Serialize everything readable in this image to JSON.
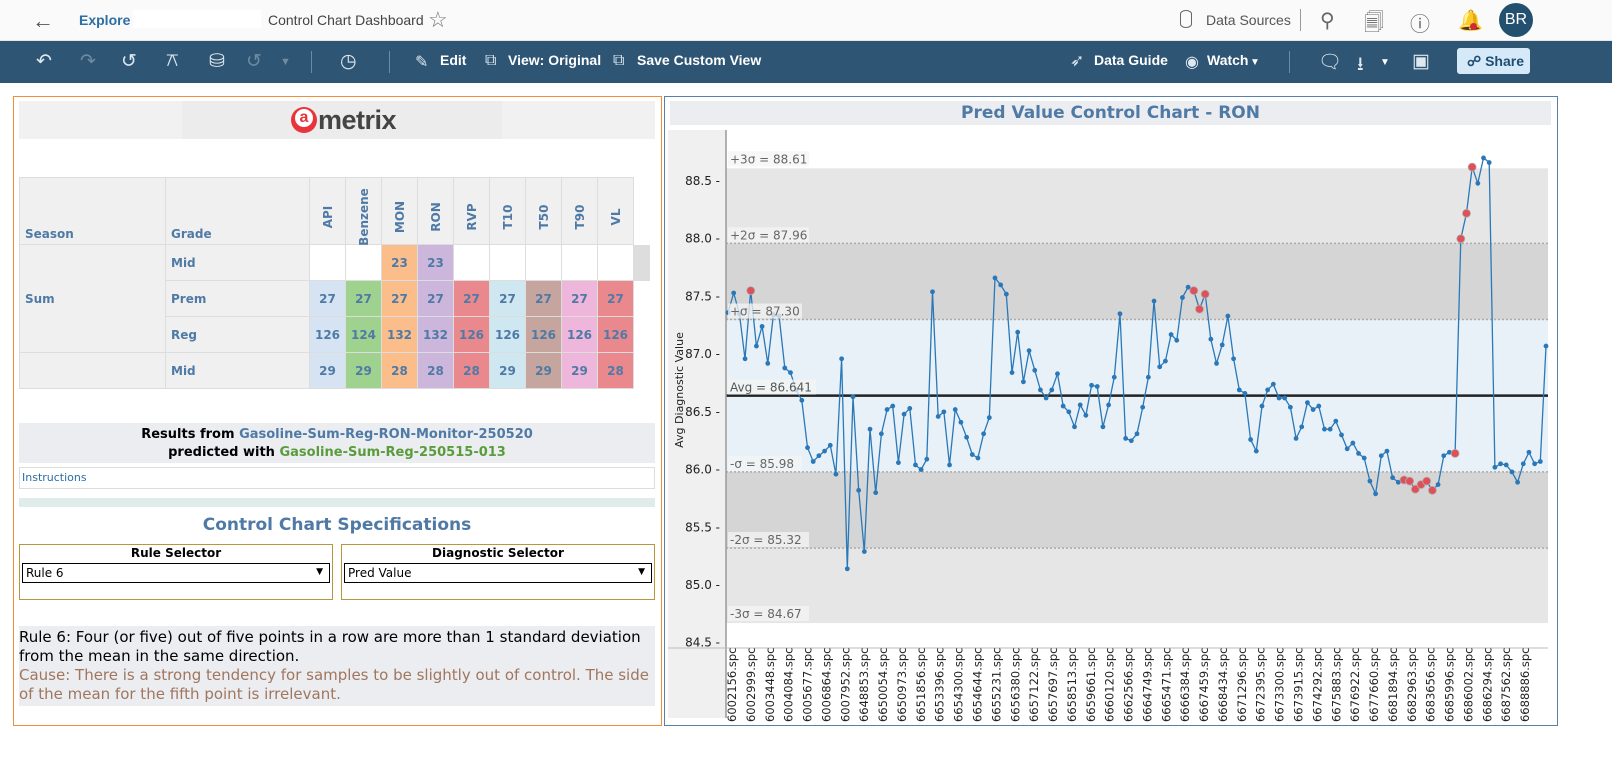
{
  "topbar": {
    "back_icon": "arrow-left-icon",
    "explore_label": "Explore",
    "dashboard_title": "Control Chart Dashboard",
    "favorite_icon": "star-icon",
    "data_sources_label": "Data Sources",
    "avatar_initials": "BR"
  },
  "toolbar": {
    "edit_label": "Edit",
    "view_label": "View: Original",
    "save_custom_view_label": "Save Custom View",
    "data_guide_label": "Data Guide",
    "watch_label": "Watch",
    "share_label": "Share"
  },
  "logo": {
    "text": "metrix",
    "mark": "a"
  },
  "counts_table": {
    "header_season": "Season",
    "header_grade": "Grade",
    "columns": [
      "API",
      "Benzene",
      "MON",
      "RON",
      "RVP",
      "T10",
      "T50",
      "T90",
      "VL"
    ],
    "column_colors": [
      "#d6e3f2",
      "#9fd28f",
      "#fbbe8b",
      "#cdb6dc",
      "#e9898d",
      "#cfe7f0",
      "#c6a59e",
      "#efb6dc",
      "#e9898d"
    ],
    "rows": [
      {
        "season": "Sum",
        "grade": "Mid",
        "values": [
          "",
          "",
          "23",
          "23",
          "",
          "",
          "",
          "",
          ""
        ]
      },
      {
        "season": "",
        "grade": "Prem",
        "values": [
          "27",
          "27",
          "27",
          "27",
          "27",
          "27",
          "27",
          "27",
          "27"
        ]
      },
      {
        "season": "",
        "grade": "Reg",
        "values": [
          "126",
          "124",
          "132",
          "132",
          "126",
          "126",
          "126",
          "126",
          "126"
        ]
      },
      {
        "season": "",
        "grade": "Mid",
        "values": [
          "29",
          "29",
          "28",
          "28",
          "28",
          "29",
          "29",
          "29",
          "28"
        ]
      }
    ]
  },
  "results": {
    "line1_prefix": "Results from",
    "monitor_name": "Gasoline-Sum-Reg-RON-Monitor-250520",
    "line2_prefix": "predicted with",
    "model_name": "Gasoline-Sum-Reg-250515-013"
  },
  "instructions_label": "Instructions",
  "specs": {
    "title": "Control Chart Specifications",
    "rule_selector_label": "Rule Selector",
    "rule_selector_value": "Rule 6",
    "diagnostic_selector_label": "Diagnostic Selector",
    "diagnostic_selector_value": "Pred Value"
  },
  "rule_description": {
    "text": "Rule 6: Four (or five) out of five points in a row are more than 1 standard deviation from the mean in the same direction.",
    "cause": "Cause: There is a strong tendency for samples to be slightly out of control. The side of the mean for the fifth point is irrelevant."
  },
  "chart_data": {
    "type": "line",
    "title": "Pred Value Control Chart - RON",
    "xlabel": "",
    "ylabel": "Avg Diagnostic Value",
    "ylim": [
      84.5,
      88.75
    ],
    "yticks": [
      84.5,
      85.0,
      85.5,
      86.0,
      86.5,
      87.0,
      87.5,
      88.0,
      88.5
    ],
    "control_lines": [
      {
        "label": "+3σ = 88.61",
        "value": 88.61
      },
      {
        "label": "+2σ = 87.96",
        "value": 87.96
      },
      {
        "label": "+σ = 87.30",
        "value": 87.3
      },
      {
        "label": "Avg = 86.641",
        "value": 86.641
      },
      {
        "label": "-σ = 85.98",
        "value": 85.98
      },
      {
        "label": "-2σ = 85.32",
        "value": 85.32
      },
      {
        "label": "-3σ = 84.67",
        "value": 84.67
      }
    ],
    "x_tick_labels": [
      "6002156.spc",
      "6002999.spc",
      "6003448.spc",
      "6004084.spc",
      "6005677.spc",
      "6006864.spc",
      "6007952.spc",
      "6648853.spc",
      "6650054.spc",
      "6650973.spc",
      "6651856.spc",
      "6653396.spc",
      "6654300.spc",
      "6654644.spc",
      "6655231.spc",
      "6656380.spc",
      "6657122.spc",
      "6657697.spc",
      "6658513.spc",
      "6659661.spc",
      "6660120.spc",
      "6662566.spc",
      "6664749.spc",
      "6665471.spc",
      "6666384.spc",
      "6667459.spc",
      "6668434.spc",
      "6671296.spc",
      "6672395.spc",
      "6673300.spc",
      "6673915.spc",
      "6674292.spc",
      "6675883.spc",
      "6676922.spc",
      "6677660.spc",
      "6681894.spc",
      "6682963.spc",
      "6683656.spc",
      "6685996.spc",
      "6686002.spc",
      "6686294.spc",
      "6687562.spc",
      "6688886.spc"
    ],
    "series": [
      {
        "name": "Avg Diagnostic Value",
        "values": [
          87.36,
          87.53,
          87.35,
          86.96,
          87.55,
          87.07,
          87.24,
          86.92,
          87.34,
          87.33,
          86.88,
          86.84,
          86.69,
          86.6,
          86.19,
          86.07,
          86.12,
          86.16,
          86.21,
          85.96,
          86.96,
          85.14,
          86.63,
          85.82,
          85.29,
          86.35,
          85.8,
          86.31,
          86.52,
          86.55,
          86.06,
          86.48,
          86.53,
          86.04,
          86.0,
          86.09,
          87.54,
          86.46,
          86.5,
          86.04,
          86.52,
          86.41,
          86.28,
          86.13,
          86.1,
          86.31,
          86.45,
          87.66,
          87.6,
          87.52,
          86.84,
          87.19,
          86.76,
          87.03,
          86.86,
          86.69,
          86.62,
          86.69,
          86.83,
          86.55,
          86.5,
          86.37,
          86.56,
          86.47,
          86.73,
          86.72,
          86.37,
          86.56,
          86.8,
          87.35,
          86.27,
          86.25,
          86.31,
          86.54,
          86.8,
          87.46,
          86.89,
          86.94,
          87.17,
          87.12,
          87.49,
          87.58,
          87.55,
          87.39,
          87.52,
          87.13,
          86.92,
          87.08,
          87.33,
          86.96,
          86.69,
          86.66,
          86.26,
          86.16,
          86.55,
          86.69,
          86.74,
          86.62,
          86.62,
          86.54,
          86.27,
          86.37,
          86.58,
          86.52,
          86.55,
          86.35,
          86.35,
          86.42,
          86.3,
          86.18,
          86.23,
          86.14,
          86.1,
          85.9,
          85.79,
          86.12,
          86.16,
          85.93,
          85.89,
          85.91,
          85.9,
          85.83,
          85.87,
          85.9,
          85.82,
          85.87,
          86.12,
          86.15,
          86.14,
          88.0,
          88.22,
          88.62,
          88.48,
          88.7,
          88.66,
          86.02,
          86.05,
          86.04,
          85.98,
          85.89,
          86.05,
          86.15,
          86.05,
          86.07,
          87.07
        ],
        "flagged_indices": [
          4,
          82,
          83,
          84,
          119,
          120,
          121,
          122,
          123,
          124,
          128,
          129,
          130,
          131
        ]
      }
    ],
    "grid": false,
    "legend": "none"
  }
}
